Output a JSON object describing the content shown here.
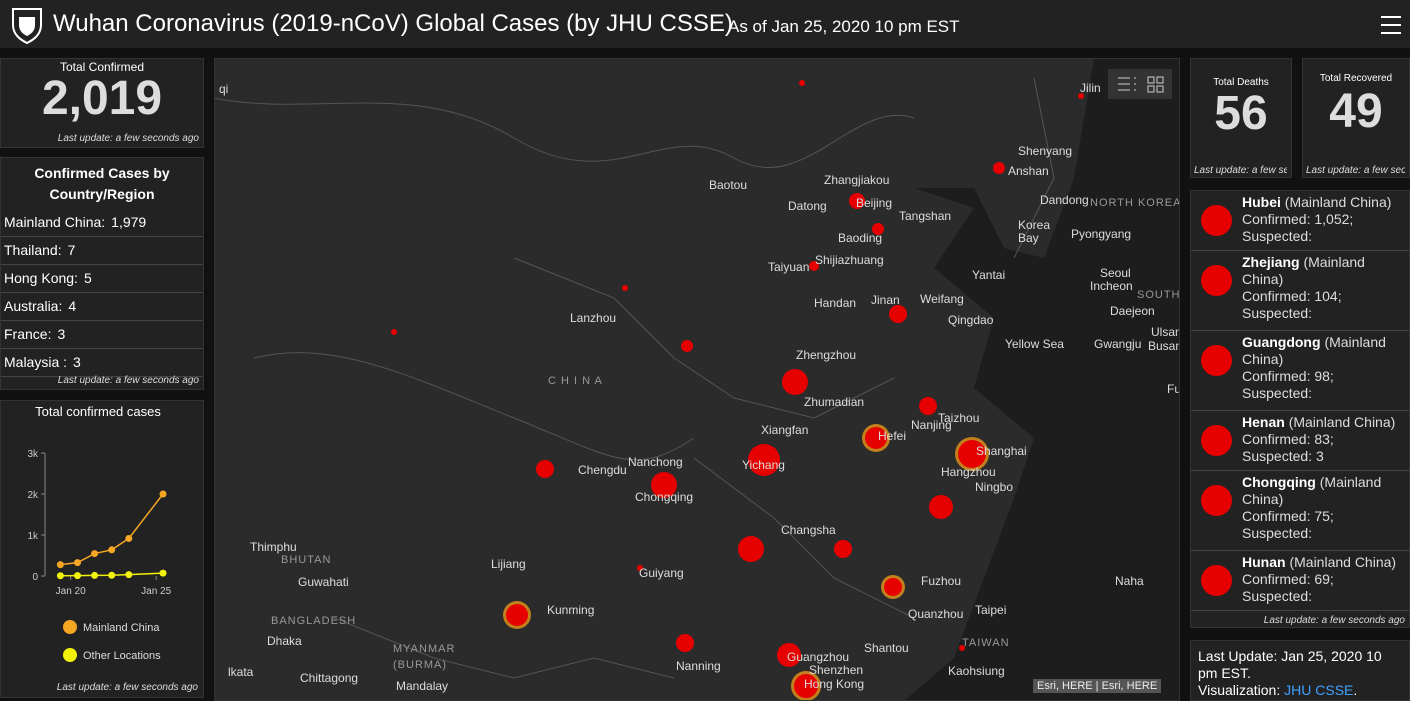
{
  "header": {
    "title": "Wuhan Coronavirus (2019-nCoV) Global Cases (by JHU CSSE)",
    "subtitle": "As of Jan 25, 2020 10 pm EST"
  },
  "total_confirmed": {
    "label": "Total Confirmed",
    "value": "2,019",
    "note": "Last update: a few seconds ago"
  },
  "country_list": {
    "title": "Confirmed Cases by Country/Region",
    "items": [
      {
        "name": "Mainland China:",
        "value": "1,979"
      },
      {
        "name": "Thailand:",
        "value": "7"
      },
      {
        "name": "Hong Kong:",
        "value": "5"
      },
      {
        "name": "Australia:",
        "value": "4"
      },
      {
        "name": "France:",
        "value": "3"
      },
      {
        "name": "Malaysia :",
        "value": "3"
      }
    ],
    "note": "Last update: a few seconds ago"
  },
  "deaths": {
    "label": "Total Deaths",
    "value": "56",
    "note": "Last update: a few se"
  },
  "recovered": {
    "label": "Total Recovered",
    "value": "49",
    "note": "Last update: a few seco"
  },
  "province_list": {
    "items": [
      {
        "name": "Hubei",
        "region": "(Mainland China)",
        "confirmed": "Confirmed: 1,052;",
        "suspected": "Suspected:"
      },
      {
        "name": "Zhejiang",
        "region": "(Mainland China)",
        "confirmed": "Confirmed: 104;",
        "suspected": "Suspected:"
      },
      {
        "name": "Guangdong",
        "region": "(Mainland China)",
        "confirmed": "Confirmed: 98;",
        "suspected": "Suspected:"
      },
      {
        "name": "Henan",
        "region": "(Mainland China)",
        "confirmed": "Confirmed: 83;",
        "suspected": "Suspected: 3"
      },
      {
        "name": "Chongqing",
        "region": "(Mainland China)",
        "confirmed": "Confirmed: 75;",
        "suspected": "Suspected:"
      },
      {
        "name": "Hunan",
        "region": "(Mainland China)",
        "confirmed": "Confirmed: 69;",
        "suspected": "Suspected:"
      }
    ],
    "note": "Last update: a few seconds ago"
  },
  "last_update": {
    "text": "Last Update: Jan 25, 2020 10 pm EST.",
    "visualization": "Visualization:",
    "link": "JHU CSSE",
    "period": "."
  },
  "map": {
    "attribution": "Esri, HERE | Esri, HERE",
    "labels": [
      "Jilin",
      "Shenyang",
      "Anshan",
      "Dandong",
      "NORTH KOREA",
      "Korea",
      "Bay",
      "Pyongyang",
      "Baotou",
      "Zhangjiakou",
      "Datong",
      "Beijing",
      "Tangshan",
      "Baoding",
      "Taiyuan",
      "Shijiazhuang",
      "Yantai",
      "Seoul",
      "Incheon",
      "SOUTH KOREA",
      "Daejeon",
      "Lanzhou",
      "Handan",
      "Jinan",
      "Weifang",
      "Qingdao",
      "Ulsan",
      "Busan",
      "Yellow Sea",
      "Gwangju",
      "Zhengzhou",
      "C H I N A",
      "Zhumadian",
      "Taizhou",
      "Fuku",
      "Xiangfan",
      "Nanjing",
      "Hefei",
      "Shanghai",
      "Chengdu",
      "Nanchong",
      "Yichang",
      "Hangzhou",
      "Chongqing",
      "Ningbo",
      "Changsha",
      "Thimphu",
      "BHUTAN",
      "Lijiang",
      "Guiyang",
      "Guwahati",
      "Fuzhou",
      "Naha",
      "Kunming",
      "Taipei",
      "Quanzhou",
      "BANGLADESH",
      "Dhaka",
      "TAIWAN",
      "MYANMAR",
      "(BURMA)",
      "Shantou",
      "Guangzhou",
      "Nanning",
      "Shenzhen",
      "Hong Kong",
      "Kaohsiung",
      "lkata",
      "Chittagong",
      "Mandalay",
      "qi"
    ]
  },
  "chart_data": {
    "type": "line",
    "title": "Total confirmed cases",
    "x": [
      19.4,
      20.4,
      21.4,
      22.4,
      23.4,
      25.4
    ],
    "series": [
      {
        "name": "Mainland China",
        "color": "#f5a623",
        "values": [
          278,
          326,
          547,
          639,
          916,
          2000
        ]
      },
      {
        "name": "Other Locations",
        "color": "#f2f20c",
        "values": [
          7,
          9,
          14,
          18,
          33,
          70
        ]
      }
    ],
    "xlim": [
      18.5,
      26.1
    ],
    "xticks": [
      {
        "value": 20,
        "label": "Jan 20"
      },
      {
        "value": 25,
        "label": "Jan 25"
      }
    ],
    "ylim": [
      0,
      3000
    ],
    "yticks": [
      0,
      {
        "value": 1000,
        "label": "1k"
      },
      {
        "value": 2000,
        "label": "2k"
      },
      {
        "value": 3000,
        "label": "3k"
      }
    ],
    "note": "Last update: a few seconds ago"
  }
}
